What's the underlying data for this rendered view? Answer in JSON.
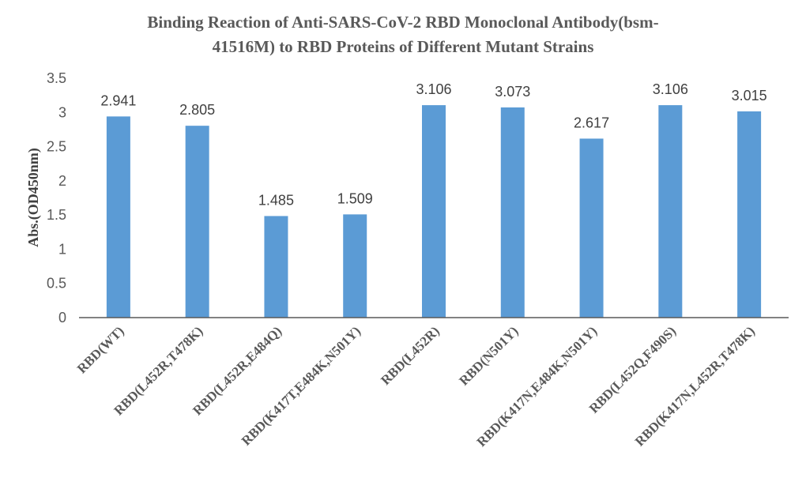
{
  "chart_data": {
    "type": "bar",
    "title_lines": [
      "Binding Reaction of Anti-SARS-CoV-2 RBD Monoclonal Antibody(bsm-",
      "41516M) to RBD Proteins of Different Mutant Strains"
    ],
    "ylabel": "Abs.(OD450nm)",
    "xlabel": "",
    "ylim": [
      0,
      3.5
    ],
    "yticks": [
      "0",
      "0.5",
      "1",
      "1.5",
      "2",
      "2.5",
      "3",
      "3.5"
    ],
    "categories": [
      "RBD(WT)",
      "RBD(L452R,T478K)",
      "RBD(L452R,E484Q)",
      "RBD(K417T,E484K,N501Y)",
      "RBD(L452R)",
      "RBD(N501Y)",
      "RBD(K417N,E484K,N501Y)",
      "RBD(L452Q,F490S)",
      "RBD(K417N,L452R,T478K)"
    ],
    "values": [
      2.941,
      2.805,
      1.485,
      1.509,
      3.106,
      3.073,
      2.617,
      3.106,
      3.015
    ],
    "data_labels": [
      "2.941",
      "2.805",
      "1.485",
      "1.509",
      "3.106",
      "3.073",
      "2.617",
      "3.106",
      "3.015"
    ],
    "bar_color": "#5B9BD5",
    "axis_color": "#595959",
    "grid": false,
    "legend": "none"
  }
}
